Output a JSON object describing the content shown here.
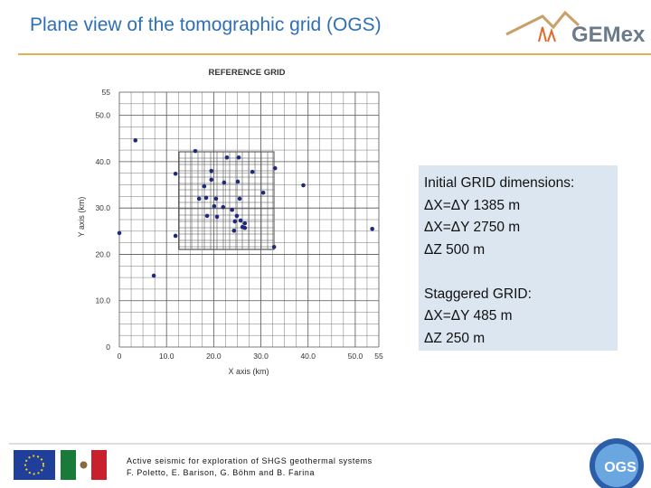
{
  "header": {
    "title": "Plane view of the tomographic grid (OGS)",
    "logo_text": "GEMex"
  },
  "chart_data": {
    "type": "scatter",
    "title": "REFERENCE GRID",
    "x_label": "X axis (km)",
    "y_label": "Y axis (km)",
    "x": [
      3.4,
      0,
      7.3,
      11.9,
      11.9,
      16.1,
      19.5,
      19.5,
      22.8,
      25.3,
      28.2,
      33.0,
      39.0,
      18.0,
      22.2,
      25.1,
      30.5,
      16.9,
      18.4,
      20.5,
      25.5,
      20.1,
      22.0,
      23.9,
      18.6,
      20.7,
      24.9,
      24.5,
      25.7,
      26.6,
      26.1,
      24.3,
      26.6,
      32.8,
      53.6
    ],
    "values": [
      44.6,
      24.6,
      15.4,
      37.4,
      24.0,
      42.3,
      38.0,
      36.1,
      40.9,
      40.9,
      37.8,
      38.6,
      34.9,
      34.7,
      35.5,
      35.7,
      33.3,
      32.0,
      32.2,
      32.0,
      32.0,
      30.4,
      30.2,
      29.6,
      28.3,
      28.1,
      28.3,
      27.1,
      27.3,
      26.7,
      25.9,
      25.1,
      25.7,
      21.6,
      25.5
    ],
    "color": "#1f2a7a",
    "xlim": [
      0,
      55
    ],
    "ylim": [
      0,
      55
    ],
    "xticks": [
      0,
      {
        "value": 10,
        "label": "10.0"
      },
      {
        "value": 20,
        "label": "20.0"
      },
      {
        "value": 30,
        "label": "30.0"
      },
      {
        "value": 40,
        "label": "40.0"
      },
      {
        "value": 50,
        "label": "50.0"
      },
      55
    ],
    "yticks": [
      0,
      {
        "value": 10,
        "label": "10.0"
      },
      {
        "value": 20,
        "label": "20.0"
      },
      {
        "value": 30,
        "label": "30.0"
      },
      {
        "value": 40,
        "label": "40.0"
      },
      {
        "value": 50,
        "label": "50.0"
      },
      55
    ],
    "grid": true
  },
  "info_box": {
    "lines": [
      "Initial GRID dimensions:",
      "ΔX=ΔY 1385 m",
      "ΔX=ΔY 2750 m",
      "ΔZ 500 m",
      "Staggered GRID:",
      "ΔX=ΔY 485 m",
      "ΔZ 250 m"
    ]
  },
  "footer": {
    "line1": "Active seismic for exploration of SHGS geothermal systems",
    "line2": "F. Poletto, E. Barison, G. Böhm and B. Farina",
    "logo_text": "OGS"
  }
}
